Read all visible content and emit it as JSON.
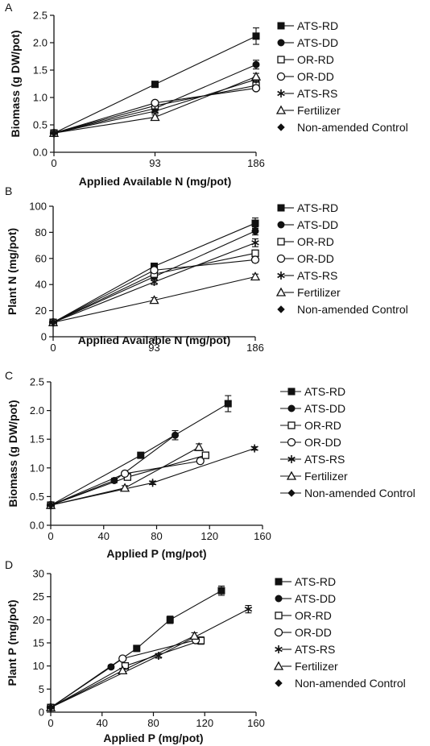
{
  "chart_data": [
    {
      "panel": "A",
      "type": "line",
      "xlabel": "Applied Available N (mg/pot)",
      "ylabel": "Biomass (g DW/pot)",
      "xlim": [
        0,
        186
      ],
      "ylim": [
        0,
        2.5
      ],
      "xticks": [
        "0",
        "93",
        "186"
      ],
      "xtick_values": [
        0,
        93,
        186
      ],
      "yticks": [
        "0.0",
        "0.5",
        "1.0",
        "1.5",
        "2.0",
        "2.5"
      ],
      "ytick_values": [
        0,
        0.5,
        1.0,
        1.5,
        2.0,
        2.5
      ],
      "legend_position": "right",
      "series": [
        {
          "name": "ATS-RD",
          "marker": "square-filled",
          "x": [
            0,
            93,
            186
          ],
          "y": [
            0.35,
            1.24,
            2.12
          ],
          "err": [
            0,
            0.05,
            0.15
          ]
        },
        {
          "name": "ATS-DD",
          "marker": "circle-filled",
          "x": [
            0,
            93,
            186
          ],
          "y": [
            0.35,
            0.8,
            1.6
          ],
          "err": [
            0,
            0.05,
            0.08
          ]
        },
        {
          "name": "OR-RD",
          "marker": "square-open",
          "x": [
            0,
            93,
            186
          ],
          "y": [
            0.35,
            0.85,
            1.22
          ],
          "err": [
            0,
            0.04,
            0.04
          ]
        },
        {
          "name": "OR-DD",
          "marker": "circle-open",
          "x": [
            0,
            93,
            186
          ],
          "y": [
            0.35,
            0.9,
            1.17
          ],
          "err": [
            0,
            0.04,
            0.04
          ]
        },
        {
          "name": "ATS-RS",
          "marker": "asterisk",
          "x": [
            0,
            93,
            186
          ],
          "y": [
            0.35,
            0.75,
            1.33
          ],
          "err": [
            0,
            0.04,
            0.04
          ]
        },
        {
          "name": "Fertilizer",
          "marker": "triangle-open",
          "x": [
            0,
            93,
            186
          ],
          "y": [
            0.35,
            0.64,
            1.38
          ],
          "err": [
            0,
            0.04,
            0.06
          ]
        },
        {
          "name": "Non-amended Control",
          "marker": "diamond-filled",
          "x": [
            0
          ],
          "y": [
            0.35
          ],
          "err": [
            0
          ]
        }
      ]
    },
    {
      "panel": "B",
      "type": "line",
      "xlabel": "Applied Available N (mg/pot)",
      "ylabel": "Plant N (mg/pot)",
      "xlim": [
        0,
        186
      ],
      "ylim": [
        0,
        100
      ],
      "xticks": [
        "0",
        "93",
        "186"
      ],
      "xtick_values": [
        0,
        93,
        186
      ],
      "yticks": [
        "0",
        "20",
        "40",
        "60",
        "80",
        "100"
      ],
      "ytick_values": [
        0,
        20,
        40,
        60,
        80,
        100
      ],
      "legend_position": "right",
      "series": [
        {
          "name": "ATS-RD",
          "marker": "square-filled",
          "x": [
            0,
            93,
            186
          ],
          "y": [
            11,
            54,
            87
          ],
          "err": [
            0,
            2,
            4
          ]
        },
        {
          "name": "ATS-DD",
          "marker": "circle-filled",
          "x": [
            0,
            93,
            186
          ],
          "y": [
            11,
            46,
            81
          ],
          "err": [
            0,
            2,
            3
          ]
        },
        {
          "name": "OR-RD",
          "marker": "square-open",
          "x": [
            0,
            93,
            186
          ],
          "y": [
            11,
            48,
            64
          ],
          "err": [
            0,
            2,
            2
          ]
        },
        {
          "name": "OR-DD",
          "marker": "circle-open",
          "x": [
            0,
            93,
            186
          ],
          "y": [
            11,
            51,
            59
          ],
          "err": [
            0,
            2,
            2
          ]
        },
        {
          "name": "ATS-RS",
          "marker": "asterisk",
          "x": [
            0,
            93,
            186
          ],
          "y": [
            11,
            42,
            72
          ],
          "err": [
            0,
            2,
            3
          ]
        },
        {
          "name": "Fertilizer",
          "marker": "triangle-open",
          "x": [
            0,
            93,
            186
          ],
          "y": [
            11,
            28,
            46
          ],
          "err": [
            0,
            2,
            2
          ]
        },
        {
          "name": "Non-amended Control",
          "marker": "diamond-filled",
          "x": [
            0
          ],
          "y": [
            11
          ],
          "err": [
            0
          ]
        }
      ]
    },
    {
      "panel": "C",
      "type": "line",
      "xlabel": "Applied P (mg/pot)",
      "ylabel": "Biomass (g DW/pot)",
      "xlim": [
        0,
        160
      ],
      "ylim": [
        0,
        2.5
      ],
      "xticks": [
        "0",
        "40",
        "80",
        "120",
        "160"
      ],
      "xtick_values": [
        0,
        40,
        80,
        120,
        160
      ],
      "yticks": [
        "0.0",
        "0.5",
        "1.0",
        "1.5",
        "2.0",
        "2.5"
      ],
      "ytick_values": [
        0,
        0.5,
        1.0,
        1.5,
        2.0,
        2.5
      ],
      "legend_position": "right",
      "series": [
        {
          "name": "ATS-RD",
          "marker": "square-filled",
          "x": [
            0,
            68,
            134
          ],
          "y": [
            0.35,
            1.22,
            2.12
          ],
          "err": [
            0,
            0.04,
            0.14
          ]
        },
        {
          "name": "ATS-DD",
          "marker": "circle-filled",
          "x": [
            0,
            48,
            94
          ],
          "y": [
            0.35,
            0.78,
            1.57
          ],
          "err": [
            0,
            0.04,
            0.08
          ]
        },
        {
          "name": "OR-RD",
          "marker": "square-open",
          "x": [
            0,
            58,
            117
          ],
          "y": [
            0.35,
            0.84,
            1.22
          ],
          "err": [
            0,
            0.04,
            0.05
          ]
        },
        {
          "name": "OR-DD",
          "marker": "circle-open",
          "x": [
            0,
            56,
            113
          ],
          "y": [
            0.35,
            0.9,
            1.12
          ],
          "err": [
            0,
            0.04,
            0.04
          ]
        },
        {
          "name": "ATS-RS",
          "marker": "asterisk",
          "x": [
            0,
            77,
            154
          ],
          "y": [
            0.35,
            0.74,
            1.34
          ],
          "err": [
            0,
            0.03,
            0.03
          ]
        },
        {
          "name": "Fertilizer",
          "marker": "triangle-open",
          "x": [
            0,
            56,
            112
          ],
          "y": [
            0.35,
            0.65,
            1.36
          ],
          "err": [
            0,
            0.04,
            0.06
          ]
        },
        {
          "name": "Non-amended Control",
          "marker": "diamond-filled",
          "x": [
            0
          ],
          "y": [
            0.35
          ],
          "err": [
            0
          ]
        }
      ]
    },
    {
      "panel": "D",
      "type": "line",
      "xlabel": "Applied P (mg/pot)",
      "ylabel": "Plant P (mg/pot)",
      "xlim": [
        0,
        160
      ],
      "ylim": [
        0,
        30
      ],
      "xticks": [
        "0",
        "40",
        "80",
        "120",
        "160"
      ],
      "xtick_values": [
        0,
        40,
        80,
        120,
        160
      ],
      "yticks": [
        "0",
        "5",
        "10",
        "15",
        "20",
        "25",
        "30"
      ],
      "ytick_values": [
        0,
        5,
        10,
        15,
        20,
        25,
        30
      ],
      "legend_position": "right",
      "series": [
        {
          "name": "ATS-RD",
          "marker": "square-filled",
          "x": [
            0,
            67,
            93,
            133
          ],
          "y": [
            1,
            13.8,
            20,
            26.3
          ],
          "err": [
            0,
            0.5,
            0.8,
            1.0
          ]
        },
        {
          "name": "ATS-DD",
          "marker": "circle-filled",
          "x": [
            0,
            47
          ],
          "y": [
            1,
            9.8
          ],
          "err": [
            0,
            0.4
          ]
        },
        {
          "name": "OR-RD",
          "marker": "square-open",
          "x": [
            0,
            58,
            117
          ],
          "y": [
            1,
            10,
            15.5
          ],
          "err": [
            0,
            0.5,
            0.8
          ]
        },
        {
          "name": "OR-DD",
          "marker": "circle-open",
          "x": [
            0,
            56,
            113
          ],
          "y": [
            1,
            11.6,
            15.6
          ],
          "err": [
            0,
            0.5,
            0.7
          ]
        },
        {
          "name": "ATS-RS",
          "marker": "asterisk",
          "x": [
            0,
            84,
            154
          ],
          "y": [
            1,
            12.2,
            22.3
          ],
          "err": [
            0,
            0.5,
            0.8
          ]
        },
        {
          "name": "Fertilizer",
          "marker": "triangle-open",
          "x": [
            0,
            56,
            112
          ],
          "y": [
            1,
            9,
            16.5
          ],
          "err": [
            0,
            0.5,
            0.7
          ]
        },
        {
          "name": "Non-amended Control",
          "marker": "diamond-filled",
          "x": [
            0
          ],
          "y": [
            1
          ],
          "err": [
            0
          ]
        }
      ]
    }
  ]
}
